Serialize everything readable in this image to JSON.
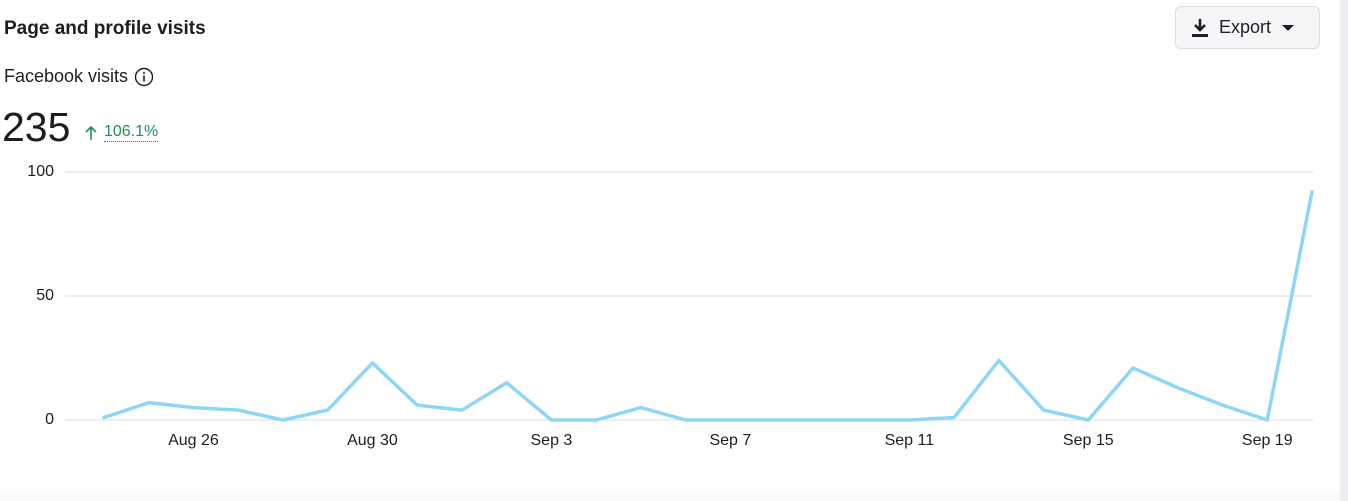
{
  "header": {
    "title": "Page and profile visits",
    "export": "Export",
    "metric": "Facebook visits",
    "total": "235",
    "change": "106.1%"
  },
  "chart_data": {
    "type": "line",
    "categories": [
      null,
      null,
      "Aug 26",
      null,
      null,
      null,
      "Aug 30",
      null,
      null,
      null,
      "Sep 3",
      null,
      null,
      null,
      "Sep 7",
      null,
      null,
      null,
      "Sep 11",
      null,
      null,
      null,
      "Sep 15",
      null,
      null,
      null,
      "Sep 19",
      null
    ],
    "values": [
      1,
      7,
      5,
      4,
      0,
      4,
      23,
      6,
      4,
      15,
      0,
      0,
      5,
      0,
      0,
      0,
      0,
      0,
      0,
      1,
      24,
      4,
      0,
      21,
      13,
      6,
      0,
      92
    ],
    "color": "#8ed6f6",
    "ylim": [
      0,
      100
    ],
    "yticks": [
      0,
      50,
      100
    ],
    "grid": true
  }
}
